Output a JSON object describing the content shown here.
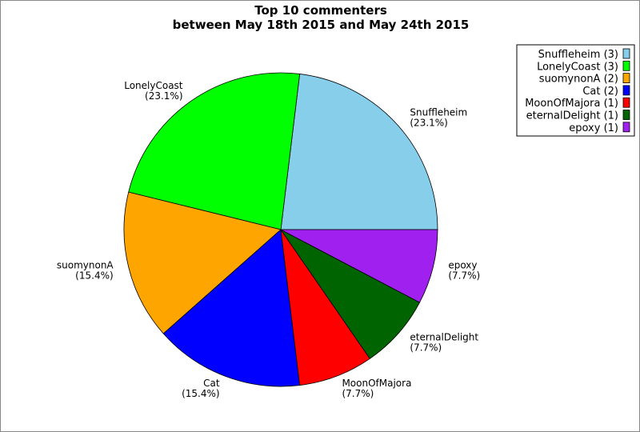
{
  "chart_data": {
    "type": "pie",
    "title_line1": "Top 10 commenters",
    "title_line2": "between May 18th 2015 and May 24th 2015",
    "start_angle_deg": 0,
    "direction": "counterclockwise",
    "legend_placement": "top-right",
    "slices": [
      {
        "name": "Snuffleheim",
        "value": 3,
        "percent": "23.1%",
        "legend": "Snuffleheim (3)",
        "color": "#87ceeb"
      },
      {
        "name": "LonelyCoast",
        "value": 3,
        "percent": "23.1%",
        "legend": "LonelyCoast (3)",
        "color": "#00ff00"
      },
      {
        "name": "suomynonA",
        "value": 2,
        "percent": "15.4%",
        "legend": "suomynonA (2)",
        "color": "#ffa500"
      },
      {
        "name": "Cat",
        "value": 2,
        "percent": "15.4%",
        "legend": "Cat (2)",
        "color": "#0000ff"
      },
      {
        "name": "MoonOfMajora",
        "value": 1,
        "percent": "7.7%",
        "legend": "MoonOfMajora (1)",
        "color": "#ff0000"
      },
      {
        "name": "eternalDelight",
        "value": 1,
        "percent": "7.7%",
        "legend": "eternalDelight (1)",
        "color": "#006400"
      },
      {
        "name": "epoxy",
        "value": 1,
        "percent": "7.7%",
        "legend": "epoxy (1)",
        "color": "#a020f0"
      }
    ]
  }
}
